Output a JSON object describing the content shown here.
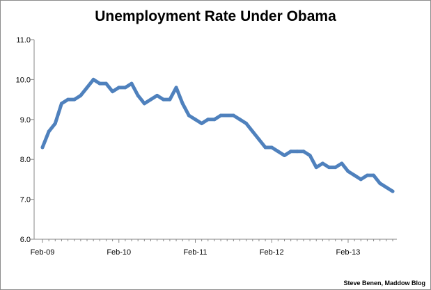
{
  "chart_data": {
    "type": "line",
    "title": "Unemployment Rate Under Obama",
    "xlabel": "",
    "ylabel": "",
    "ylim": [
      6.0,
      11.0
    ],
    "yticks": [
      "6.0",
      "7.0",
      "8.0",
      "9.0",
      "10.0",
      "11.0"
    ],
    "xtick_labels": [
      {
        "label": "Feb-09",
        "index": 0
      },
      {
        "label": "Feb-10",
        "index": 12
      },
      {
        "label": "Feb-11",
        "index": 24
      },
      {
        "label": "Feb-12",
        "index": 36
      },
      {
        "label": "Feb-13",
        "index": 48
      }
    ],
    "grid": false,
    "legend": "none",
    "line_color": "#4f81bd",
    "series": [
      {
        "values": [
          8.3,
          8.7,
          8.9,
          9.4,
          9.5,
          9.5,
          9.6,
          9.8,
          10.0,
          9.9,
          9.9,
          9.7,
          9.8,
          9.8,
          9.9,
          9.6,
          9.4,
          9.5,
          9.6,
          9.5,
          9.5,
          9.8,
          9.4,
          9.1,
          9.0,
          8.9,
          9.0,
          9.0,
          9.1,
          9.1,
          9.1,
          9.0,
          8.9,
          8.7,
          8.5,
          8.3,
          8.3,
          8.2,
          8.1,
          8.2,
          8.2,
          8.2,
          8.1,
          7.8,
          7.9,
          7.8,
          7.8,
          7.9,
          7.7,
          7.6,
          7.5,
          7.6,
          7.6,
          7.4,
          7.3,
          7.2
        ]
      }
    ]
  },
  "credit": "Steve Benen, Maddow Blog"
}
